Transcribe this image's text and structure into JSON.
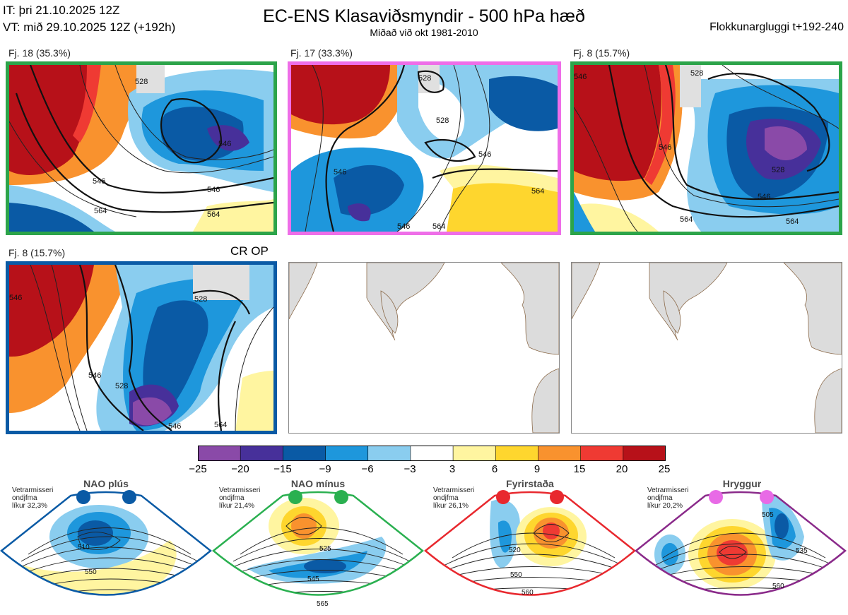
{
  "header": {
    "issued": "IT: þri 21.10.2025 12Z",
    "valid": "VT: mið 29.10.2025 12Z  (+192h)",
    "title": "EC-ENS Klasaviðsmyndir - 500 hPa hæð",
    "subtitle": "Miðað við okt 1981-2010",
    "window": "Flokkunargluggi t+192-240"
  },
  "panels": [
    {
      "label": "Fj. 18 (35.3%)",
      "border_color": "#2ca44a",
      "contours": [
        "528",
        "546",
        "546",
        "564",
        "564",
        "546"
      ]
    },
    {
      "label": "Fj. 17 (33.3%)",
      "border_color": "#ee6ee8",
      "contours": [
        "528",
        "528",
        "546",
        "564",
        "546",
        "564",
        "546"
      ]
    },
    {
      "label": "Fj. 8 (15.7%)",
      "border_color": "#2ca44a",
      "contours": [
        "546",
        "528",
        "528",
        "546",
        "564",
        "564",
        "546"
      ]
    },
    {
      "label": "Fj. 8 (15.7%)",
      "border_color": "#0a5aa5",
      "tag": "CR OP",
      "contours": [
        "546",
        "528",
        "528",
        "546",
        "546",
        "564"
      ]
    },
    {
      "label": "",
      "border_color": "#888888"
    },
    {
      "label": "",
      "border_color": "#888888"
    }
  ],
  "colorbar": {
    "ticks": [
      "−25",
      "−20",
      "−15",
      "−9",
      "−6",
      "−3",
      "3",
      "6",
      "9",
      "15",
      "20",
      "25"
    ],
    "colors": [
      "#8a4aa8",
      "#47309a",
      "#0a5aa5",
      "#1e97dc",
      "#8acdef",
      "#ffffff",
      "#fff5a0",
      "#fed62e",
      "#f9922e",
      "#ef3a33",
      "#b71119"
    ]
  },
  "regimes": [
    {
      "name": "NAO plús",
      "info": [
        "Vetrarmisseri",
        "ondjfma",
        "líkur 32,3%"
      ],
      "color": "#0a5aa5",
      "contours": [
        "510",
        "550"
      ]
    },
    {
      "name": "NAO mínus",
      "info": [
        "Vetrarmisseri",
        "ondjfma",
        "líkur 21,4%"
      ],
      "color": "#2ab050",
      "contours": [
        "525",
        "545",
        "565"
      ]
    },
    {
      "name": "Fyrirstaða",
      "info": [
        "Vetrarmisseri",
        "ondjfma",
        "líkur 26,1%"
      ],
      "color": "#e8282e",
      "contours": [
        "520",
        "550",
        "560"
      ]
    },
    {
      "name": "Hryggur",
      "info": [
        "Vetrarmisseri",
        "ondjfma",
        "líkur 20,2%"
      ],
      "color": "#e86ae6",
      "contours": [
        "505",
        "535",
        "560"
      ]
    }
  ]
}
